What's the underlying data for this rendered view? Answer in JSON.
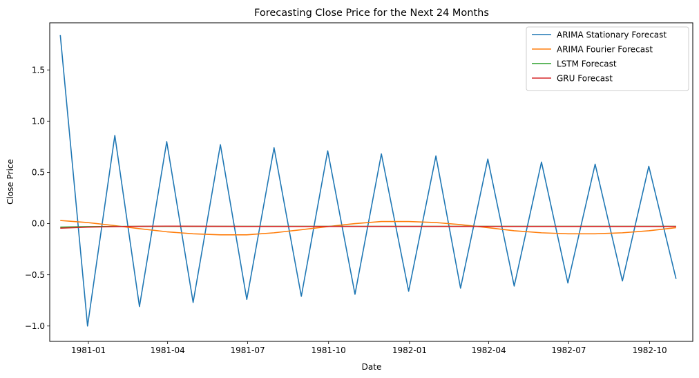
{
  "chart_data": {
    "type": "line",
    "title": "Forecasting Close Price for the Next 24 Months",
    "xlabel": "Date",
    "ylabel": "Close Price",
    "xlim": [
      "1980-11-18",
      "1982-11-19"
    ],
    "ylim": [
      -1.15,
      1.96
    ],
    "x_ticks": [
      {
        "date": "1981-01-01",
        "label": "1981-01"
      },
      {
        "date": "1981-04-01",
        "label": "1981-04"
      },
      {
        "date": "1981-07-01",
        "label": "1981-07"
      },
      {
        "date": "1981-10-01",
        "label": "1981-10"
      },
      {
        "date": "1982-01-01",
        "label": "1982-01"
      },
      {
        "date": "1982-04-01",
        "label": "1982-04"
      },
      {
        "date": "1982-07-01",
        "label": "1982-07"
      },
      {
        "date": "1982-10-01",
        "label": "1982-10"
      }
    ],
    "y_ticks": [
      {
        "value": -1.0,
        "label": "−1.0"
      },
      {
        "value": -0.5,
        "label": "−0.5"
      },
      {
        "value": 0.0,
        "label": "0.0"
      },
      {
        "value": 0.5,
        "label": "0.5"
      },
      {
        "value": 1.0,
        "label": "1.0"
      },
      {
        "value": 1.5,
        "label": "1.5"
      }
    ],
    "grid": false,
    "legend_position": "top-right",
    "x": [
      "1980-11-30",
      "1980-12-31",
      "1981-01-31",
      "1981-02-28",
      "1981-03-31",
      "1981-04-30",
      "1981-05-31",
      "1981-06-30",
      "1981-07-31",
      "1981-08-31",
      "1981-09-30",
      "1981-10-31",
      "1981-11-30",
      "1981-12-31",
      "1982-01-31",
      "1982-02-28",
      "1982-03-31",
      "1982-04-30",
      "1982-05-31",
      "1982-06-30",
      "1982-07-31",
      "1982-08-31",
      "1982-09-30",
      "1982-10-31"
    ],
    "series": [
      {
        "name": "ARIMA Stationary Forecast",
        "color": "#1f77b4",
        "values": [
          1.84,
          -1.0,
          0.86,
          -0.81,
          0.8,
          -0.77,
          0.77,
          -0.74,
          0.74,
          -0.71,
          0.71,
          -0.69,
          0.68,
          -0.66,
          0.66,
          -0.63,
          0.63,
          -0.61,
          0.6,
          -0.58,
          0.58,
          -0.56,
          0.56,
          -0.54
        ]
      },
      {
        "name": "ARIMA Fourier Forecast",
        "color": "#ff7f0e",
        "values": [
          0.03,
          0.01,
          -0.02,
          -0.05,
          -0.08,
          -0.1,
          -0.11,
          -0.11,
          -0.09,
          -0.06,
          -0.03,
          0.0,
          0.02,
          0.02,
          0.01,
          -0.01,
          -0.04,
          -0.07,
          -0.09,
          -0.1,
          -0.1,
          -0.09,
          -0.07,
          -0.04
        ]
      },
      {
        "name": "LSTM Forecast",
        "color": "#2ca02c",
        "values": [
          -0.035,
          -0.03,
          -0.028,
          -0.027,
          -0.027,
          -0.027,
          -0.027,
          -0.027,
          -0.027,
          -0.027,
          -0.027,
          -0.027,
          -0.027,
          -0.027,
          -0.027,
          -0.027,
          -0.027,
          -0.027,
          -0.027,
          -0.027,
          -0.027,
          -0.027,
          -0.027,
          -0.027
        ]
      },
      {
        "name": "GRU Forecast",
        "color": "#d62728",
        "values": [
          -0.045,
          -0.035,
          -0.03,
          -0.027,
          -0.025,
          -0.026,
          -0.027,
          -0.028,
          -0.028,
          -0.028,
          -0.028,
          -0.028,
          -0.028,
          -0.028,
          -0.028,
          -0.028,
          -0.028,
          -0.028,
          -0.028,
          -0.028,
          -0.028,
          -0.028,
          -0.028,
          -0.028
        ]
      }
    ]
  }
}
